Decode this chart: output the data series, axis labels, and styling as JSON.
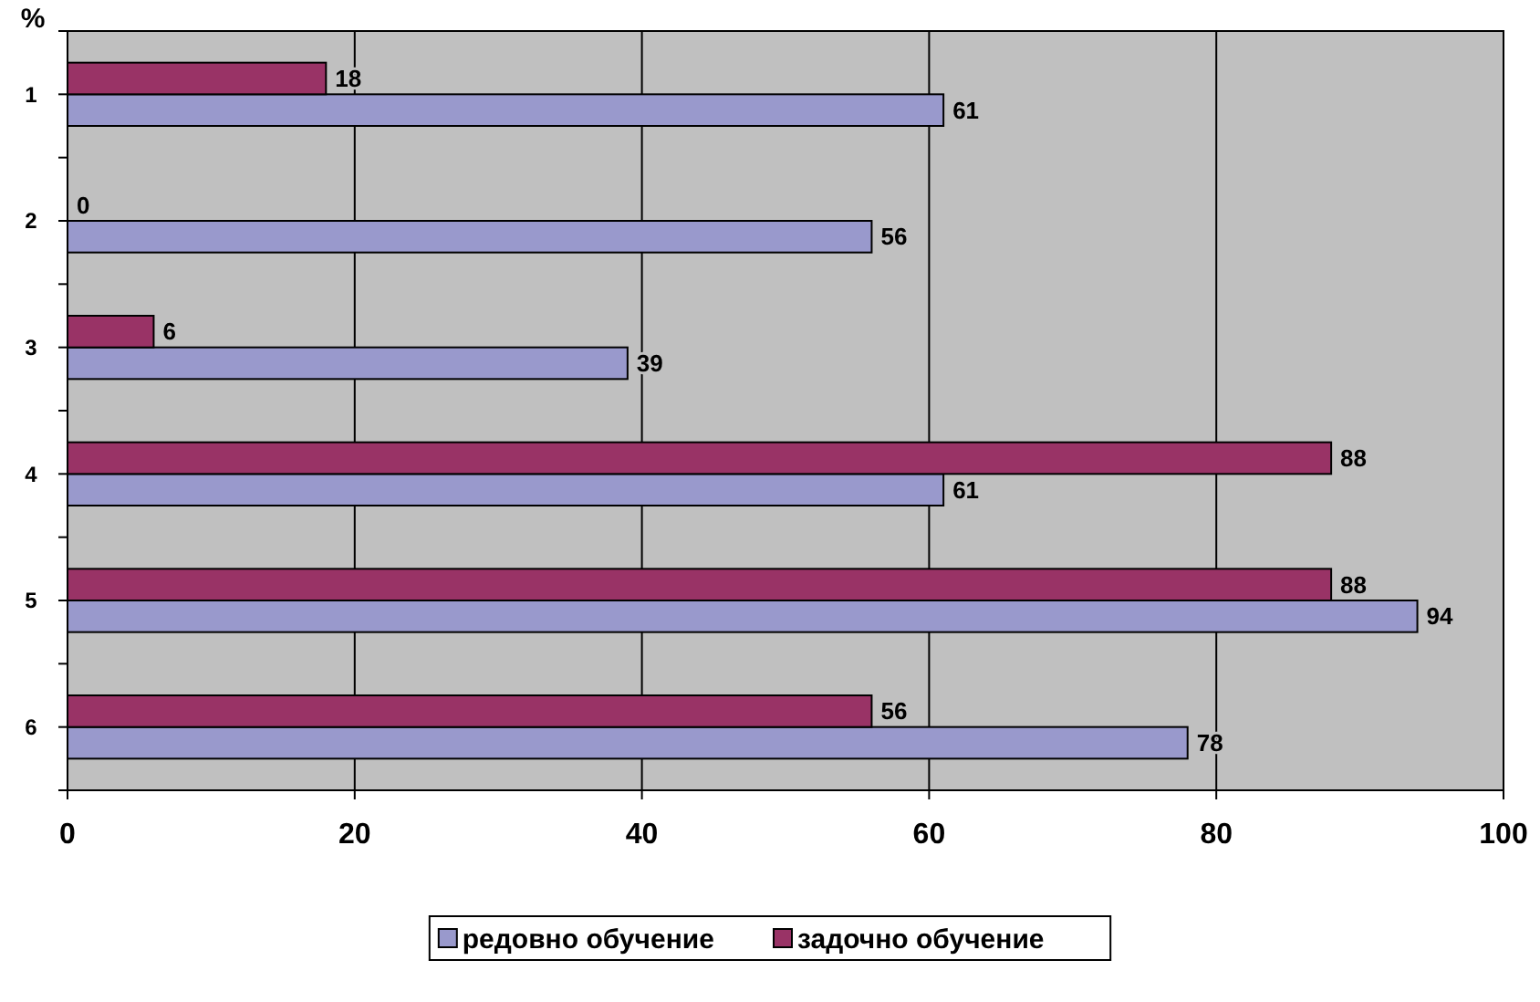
{
  "chart_data": {
    "type": "bar",
    "orientation": "horizontal",
    "ylabel": "%",
    "categories": [
      "1",
      "2",
      "3",
      "4",
      "5",
      "6"
    ],
    "series": [
      {
        "name": "редовно обучение",
        "color": "#9999cc",
        "values": [
          61,
          56,
          39,
          61,
          94,
          78
        ]
      },
      {
        "name": "задочно обучение",
        "color": "#993366",
        "values": [
          18,
          0,
          6,
          88,
          88,
          56
        ]
      }
    ],
    "xlim": [
      0,
      100
    ],
    "xticks": [
      0,
      20,
      40,
      60,
      80,
      100
    ],
    "grid": "x",
    "legend": "bottom",
    "data_labels": true
  }
}
